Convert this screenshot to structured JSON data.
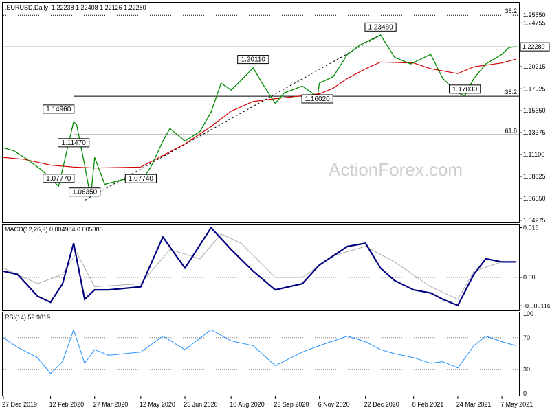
{
  "chart_data": [
    {
      "type": "line",
      "panel": "price",
      "header": {
        "symbol": ".EURUSD,Daily",
        "ohlc": "1.22238 1.22408 1.22126 1.22280"
      },
      "watermark": "ActionForex.com",
      "ylim": [
        1.0405,
        1.2685
      ],
      "y_ticks": [
        "1.24755",
        "1.22280",
        "1.20215",
        "1.17925",
        "1.15650",
        "1.13375",
        "1.11100",
        "1.08825",
        "1.06550",
        "1.04275"
      ],
      "current_price": "1.22280",
      "x_ticks": [
        "27 Dec 2019",
        "12 Feb 2020",
        "27 Mar 2020",
        "12 May 2020",
        "25 Jun 2020",
        "10 Aug 2020",
        "23 Sep 2020",
        "6 Nov 2020",
        "22 Dec 2020",
        "8 Feb 2021",
        "24 Mar 2021",
        "7 May 2021"
      ],
      "x_index": [
        "2019-12-27",
        "2020-02-12",
        "2020-03-27",
        "2020-05-12",
        "2020-06-25",
        "2020-08-10",
        "2020-09-23",
        "2020-11-06",
        "2020-12-22",
        "2021-02-08",
        "2021-03-24",
        "2021-05-07"
      ],
      "price_series": {
        "name": "",
        "x": [
          "2019-12-27",
          "2020-01-06",
          "2020-01-17",
          "2020-02-03",
          "2020-02-20",
          "2020-03-06",
          "2020-03-09",
          "2020-03-17",
          "2020-03-23",
          "2020-03-27",
          "2020-04-06",
          "2020-04-24",
          "2020-05-12",
          "2020-05-22",
          "2020-06-03",
          "2020-06-10",
          "2020-06-25",
          "2020-07-10",
          "2020-07-21",
          "2020-07-31",
          "2020-08-10",
          "2020-08-20",
          "2020-09-01",
          "2020-09-10",
          "2020-09-23",
          "2020-10-02",
          "2020-10-20",
          "2020-11-04",
          "2020-11-06",
          "2020-11-20",
          "2020-12-04",
          "2020-12-17",
          "2021-01-06",
          "2021-01-20",
          "2021-02-05",
          "2021-02-25",
          "2021-03-09",
          "2021-03-24",
          "2021-03-31",
          "2021-04-09",
          "2021-04-21",
          "2021-05-07",
          "2021-05-14",
          "2021-05-21"
        ],
        "values": [
          1.118,
          1.115,
          1.108,
          1.095,
          1.078,
          1.145,
          1.142,
          1.1,
          1.066,
          1.108,
          1.08,
          1.085,
          1.083,
          1.098,
          1.125,
          1.138,
          1.125,
          1.135,
          1.155,
          1.185,
          1.178,
          1.188,
          1.201,
          1.185,
          1.164,
          1.175,
          1.182,
          1.171,
          1.185,
          1.192,
          1.215,
          1.225,
          1.235,
          1.212,
          1.205,
          1.215,
          1.19,
          1.175,
          1.172,
          1.19,
          1.205,
          1.215,
          1.222,
          1.223
        ]
      },
      "ma_series": {
        "name": "",
        "x": [
          "2019-12-27",
          "2020-01-17",
          "2020-02-12",
          "2020-03-06",
          "2020-03-27",
          "2020-05-12",
          "2020-06-03",
          "2020-06-25",
          "2020-07-21",
          "2020-08-10",
          "2020-09-01",
          "2020-09-23",
          "2020-10-20",
          "2020-11-06",
          "2020-11-20",
          "2020-12-04",
          "2020-12-22",
          "2021-01-06",
          "2021-02-08",
          "2021-02-25",
          "2021-03-24",
          "2021-04-09",
          "2021-05-07",
          "2021-05-21"
        ],
        "values": [
          1.108,
          1.106,
          1.1,
          1.098,
          1.097,
          1.098,
          1.11,
          1.122,
          1.14,
          1.156,
          1.166,
          1.169,
          1.172,
          1.174,
          1.18,
          1.19,
          1.2,
          1.207,
          1.206,
          1.2,
          1.195,
          1.202,
          1.206,
          1.21
        ]
      },
      "trendline": {
        "from": [
          "2020-03-17",
          1.0635
        ],
        "to": [
          "2021-01-06",
          1.2348
        ]
      },
      "hlines": [
        {
          "y": 1.2555,
          "label": "38.2",
          "value_label": "1.25550",
          "style": "dotted"
        },
        {
          "y": 1.2228,
          "label": "",
          "style": "solid-gray"
        },
        {
          "y": 1.1715,
          "label": "38.2",
          "from": "2020-03-06",
          "style": "solid"
        },
        {
          "y": 1.1315,
          "label": "61.8",
          "from": "2020-03-06",
          "style": "solid"
        }
      ],
      "annotations": [
        {
          "text": "1.23480",
          "x": "2021-01-06",
          "y": 1.2348
        },
        {
          "text": "1.20110",
          "x": "2020-09-01",
          "y": 1.2011
        },
        {
          "text": "1.16020",
          "x": "2020-11-04",
          "y": 1.1602
        },
        {
          "text": "1.17030",
          "x": "2021-03-31",
          "y": 1.1703
        },
        {
          "text": "1.14960",
          "x": "2020-02-20",
          "y": 1.1496
        },
        {
          "text": "1.11470",
          "x": "2020-03-06",
          "y": 1.1147
        },
        {
          "text": "1.07770",
          "x": "2020-02-20",
          "y": 1.0777
        },
        {
          "text": "1.07740",
          "x": "2020-05-12",
          "y": 1.0774
        },
        {
          "text": "1.06350",
          "x": "2020-03-17",
          "y": 1.0635
        }
      ]
    },
    {
      "type": "line",
      "panel": "macd",
      "header": "MACD(12,26,9) 0.004984 0.005385",
      "ylim": [
        -0.0106,
        0.0168
      ],
      "y_ticks": [
        "0.016",
        "0.00",
        "-0.009116"
      ],
      "series": [
        {
          "name": "",
          "x": [
            "2019-12-27",
            "2020-01-10",
            "2020-01-30",
            "2020-02-12",
            "2020-02-24",
            "2020-03-06",
            "2020-03-17",
            "2020-03-27",
            "2020-04-10",
            "2020-05-12",
            "2020-06-03",
            "2020-06-25",
            "2020-07-21",
            "2020-08-10",
            "2020-09-01",
            "2020-09-23",
            "2020-10-20",
            "2020-11-06",
            "2020-12-04",
            "2020-12-22",
            "2021-01-06",
            "2021-01-20",
            "2021-02-08",
            "2021-02-25",
            "2021-03-09",
            "2021-03-24",
            "2021-04-09",
            "2021-04-21",
            "2021-05-07",
            "2021-05-21"
          ],
          "values": [
            0.002,
            0.001,
            -0.006,
            -0.008,
            -0.002,
            0.011,
            -0.007,
            -0.004,
            -0.004,
            -0.003,
            0.013,
            0.003,
            0.016,
            0.009,
            0.002,
            -0.004,
            -0.002,
            0.004,
            0.01,
            0.011,
            0.003,
            -0.001,
            -0.004,
            -0.005,
            -0.007,
            -0.009,
            0.001,
            0.006,
            0.005,
            0.005
          ]
        },
        {
          "name": "",
          "x": [
            "2019-12-27",
            "2020-01-30",
            "2020-02-24",
            "2020-03-09",
            "2020-03-27",
            "2020-05-12",
            "2020-06-10",
            "2020-07-10",
            "2020-07-31",
            "2020-08-20",
            "2020-09-23",
            "2020-10-20",
            "2020-11-20",
            "2020-12-22",
            "2021-01-20",
            "2021-02-25",
            "2021-03-24",
            "2021-04-09",
            "2021-05-07",
            "2021-05-21"
          ],
          "values": [
            0.003,
            -0.002,
            0.001,
            0.008,
            -0.003,
            -0.002,
            0.009,
            0.006,
            0.014,
            0.011,
            0.0,
            0.0,
            0.007,
            0.01,
            0.005,
            -0.003,
            -0.007,
            0.002,
            0.005,
            0.005
          ]
        }
      ]
    },
    {
      "type": "line",
      "panel": "rsi",
      "header": "RSI(14) 59.9819",
      "ylim": [
        0,
        100
      ],
      "y_ticks": [
        "100",
        "70",
        "30",
        "0"
      ],
      "levels": [
        70,
        30
      ],
      "series": [
        {
          "name": "",
          "x": [
            "2019-12-27",
            "2020-01-10",
            "2020-01-30",
            "2020-02-12",
            "2020-02-24",
            "2020-03-06",
            "2020-03-17",
            "2020-03-27",
            "2020-04-10",
            "2020-05-12",
            "2020-06-03",
            "2020-06-25",
            "2020-07-21",
            "2020-08-10",
            "2020-09-01",
            "2020-09-23",
            "2020-10-20",
            "2020-11-06",
            "2020-12-04",
            "2020-12-22",
            "2021-01-06",
            "2021-01-20",
            "2021-02-08",
            "2021-02-25",
            "2021-03-09",
            "2021-03-24",
            "2021-04-09",
            "2021-04-21",
            "2021-05-07",
            "2021-05-21"
          ],
          "values": [
            70,
            58,
            45,
            25,
            40,
            80,
            38,
            55,
            48,
            52,
            72,
            55,
            80,
            66,
            60,
            35,
            52,
            60,
            72,
            65,
            55,
            50,
            45,
            38,
            40,
            32,
            60,
            72,
            65,
            60
          ]
        }
      ]
    }
  ]
}
